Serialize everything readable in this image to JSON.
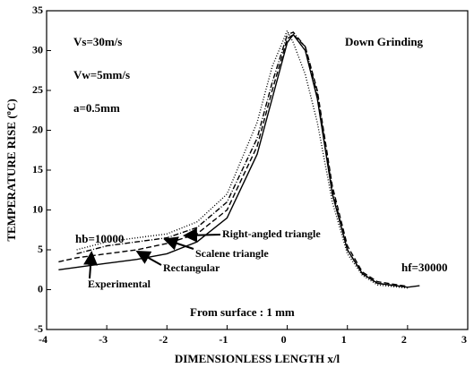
{
  "chart_data": {
    "type": "line",
    "x_label": "DIMENSIONLESS LENGTH x/l",
    "y_label": "TEMPERATURE RISE (ºC)",
    "xlim": [
      -4,
      3
    ],
    "xticks": [
      -4,
      -3,
      -2,
      -1,
      0,
      1,
      2,
      3
    ],
    "ylim": [
      -5,
      35
    ],
    "yticks": [
      -5,
      0,
      5,
      10,
      15,
      20,
      25,
      30,
      35
    ],
    "x": [
      -3.8,
      -3.5,
      -3,
      -2.5,
      -2,
      -1.5,
      -1,
      -0.5,
      -0.25,
      0,
      0.1,
      0.3,
      0.5,
      0.75,
      1,
      1.25,
      1.5,
      2,
      2.2
    ],
    "series": [
      {
        "name": "Experimental",
        "color": "#000000",
        "dash": "none",
        "values": [
          2.5,
          2.8,
          3.3,
          3.8,
          4.5,
          6,
          9,
          17,
          24,
          31,
          32,
          30,
          24,
          12,
          5,
          2,
          0.8,
          0.3,
          0.5
        ]
      },
      {
        "name": "Rectangular",
        "color": "#000000",
        "dash": "6 3",
        "values": [
          3.5,
          4,
          4.5,
          5,
          5.8,
          7,
          10,
          18,
          25,
          31.5,
          32,
          30.5,
          25,
          13,
          5.5,
          2.2,
          1,
          0.4,
          null
        ]
      },
      {
        "name": "Scalene triangle",
        "color": "#000000",
        "dash": "6 2 1 2",
        "values": [
          null,
          4.5,
          5.5,
          6,
          6.5,
          7.8,
          11,
          19,
          26,
          32,
          32.3,
          30.5,
          24.5,
          12.5,
          5,
          2,
          0.8,
          0.3,
          null
        ]
      },
      {
        "name": "Right-angled triangle",
        "color": "#000000",
        "dash": "1 2",
        "values": [
          null,
          5,
          6,
          6.5,
          7,
          8.5,
          12,
          21,
          28,
          32.5,
          31,
          27,
          21,
          11,
          4.5,
          1.8,
          0.6,
          0.2,
          null
        ]
      }
    ],
    "annotations": [
      "Vs=30m/s",
      "Vw=5mm/s",
      "a=0.5mm",
      "Down Grinding",
      "hb=10000",
      "hf=30000",
      "From surface : 1 mm"
    ]
  }
}
